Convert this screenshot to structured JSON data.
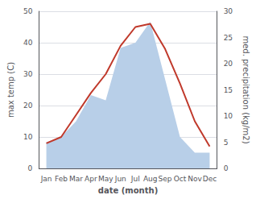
{
  "chart_data": {
    "type": "line",
    "categories": [
      "Jan",
      "Feb",
      "Mar",
      "Apr",
      "May",
      "Jun",
      "Jul",
      "Aug",
      "Sep",
      "Oct",
      "Nov",
      "Dec"
    ],
    "xlabel": "date (month)",
    "ylabel": "max temp (C)",
    "y2label": "med. precipitation (kg/m2)",
    "series": [
      {
        "type": "area",
        "color": "#b8cfe8",
        "axis": "y2",
        "values": [
          5,
          6,
          9,
          14,
          13,
          23,
          24,
          28,
          17,
          6,
          3,
          3
        ]
      },
      {
        "type": "line",
        "color": "#c0392b",
        "values": [
          8,
          10,
          17,
          24,
          30,
          39,
          45,
          46,
          38,
          27,
          15,
          7
        ]
      }
    ],
    "ylim": [
      0,
      50
    ],
    "yticks": [
      0,
      10,
      20,
      30,
      40,
      50
    ],
    "y2lim": [
      0,
      30
    ],
    "y2ticks": [
      0,
      5,
      10,
      15,
      20,
      25,
      30
    ],
    "grid": true
  }
}
